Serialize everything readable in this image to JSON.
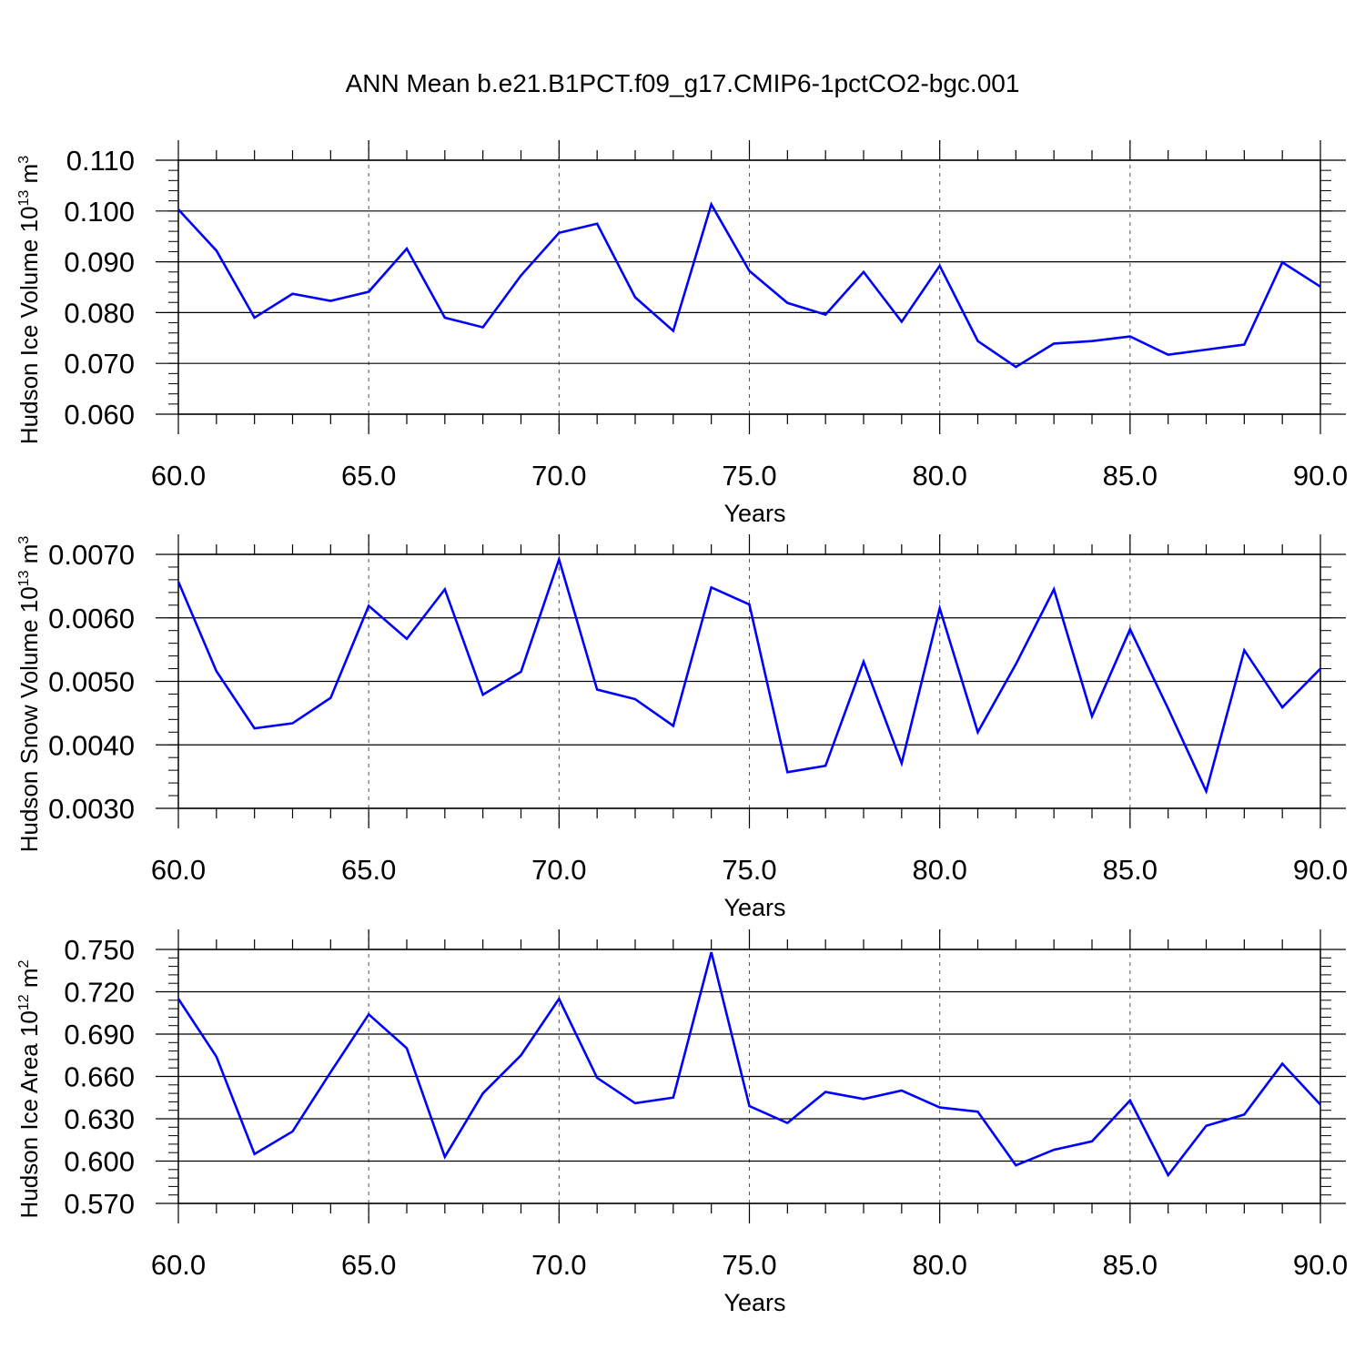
{
  "title": "ANN Mean b.e21.B1PCT.f09_g17.CMIP6-1pctCO2-bgc.001",
  "colors": {
    "line": "#0000ff",
    "axis": "#000000",
    "grid": "#555555"
  },
  "chart_data": [
    {
      "type": "line",
      "ylabel_main": "Hudson Ice Volume 10",
      "ylabel_exp": "13",
      "ylabel_unit": "m",
      "ylabel_unit_exp": "3",
      "xlabel": "Years",
      "xlim": [
        60,
        90
      ],
      "ylim": [
        0.06,
        0.11
      ],
      "xticks": [
        "60.0",
        "65.0",
        "70.0",
        "75.0",
        "80.0",
        "85.0",
        "90.0"
      ],
      "yticks": [
        "0.060",
        "0.070",
        "0.080",
        "0.090",
        "0.100",
        "0.110"
      ],
      "x": [
        60,
        61,
        62,
        63,
        64,
        65,
        66,
        67,
        68,
        69,
        70,
        71,
        72,
        73,
        74,
        75,
        76,
        77,
        78,
        79,
        80,
        81,
        82,
        83,
        84,
        85,
        86,
        87,
        88,
        89,
        90
      ],
      "values": [
        0.1003,
        0.0922,
        0.079,
        0.0837,
        0.0823,
        0.0841,
        0.0926,
        0.079,
        0.0771,
        0.0873,
        0.0957,
        0.0975,
        0.083,
        0.0764,
        0.1013,
        0.0882,
        0.0819,
        0.0796,
        0.088,
        0.0782,
        0.0892,
        0.0744,
        0.0693,
        0.0739,
        0.0744,
        0.0753,
        0.0717,
        0.0727,
        0.0737,
        0.0899,
        0.0851
      ]
    },
    {
      "type": "line",
      "ylabel_main": "Hudson Snow Volume 10",
      "ylabel_exp": "13",
      "ylabel_unit": "m",
      "ylabel_unit_exp": "3",
      "xlabel": "Years",
      "xlim": [
        60,
        90
      ],
      "ylim": [
        0.003,
        0.007
      ],
      "xticks": [
        "60.0",
        "65.0",
        "70.0",
        "75.0",
        "80.0",
        "85.0",
        "90.0"
      ],
      "yticks": [
        "0.0030",
        "0.0040",
        "0.0050",
        "0.0060",
        "0.0070"
      ],
      "x": [
        60,
        61,
        62,
        63,
        64,
        65,
        66,
        67,
        68,
        69,
        70,
        71,
        72,
        73,
        74,
        75,
        76,
        77,
        78,
        79,
        80,
        81,
        82,
        83,
        84,
        85,
        86,
        87,
        88,
        89,
        90
      ],
      "values": [
        0.00657,
        0.00516,
        0.00426,
        0.00434,
        0.00474,
        0.00619,
        0.00567,
        0.00645,
        0.00479,
        0.00515,
        0.00692,
        0.00487,
        0.00472,
        0.0043,
        0.00648,
        0.00621,
        0.00357,
        0.00367,
        0.00531,
        0.00371,
        0.00615,
        0.0042,
        0.00527,
        0.00645,
        0.00445,
        0.00582,
        0.00457,
        0.00327,
        0.00549,
        0.00459,
        0.0052
      ]
    },
    {
      "type": "line",
      "ylabel_main": "Hudson Ice Area 10",
      "ylabel_exp": "12",
      "ylabel_unit": "m",
      "ylabel_unit_exp": "2",
      "xlabel": "Years",
      "xlim": [
        60,
        90
      ],
      "ylim": [
        0.57,
        0.75
      ],
      "xticks": [
        "60.0",
        "65.0",
        "70.0",
        "75.0",
        "80.0",
        "85.0",
        "90.0"
      ],
      "yticks": [
        "0.570",
        "0.600",
        "0.630",
        "0.660",
        "0.690",
        "0.720",
        "0.750"
      ],
      "x": [
        60,
        61,
        62,
        63,
        64,
        65,
        66,
        67,
        68,
        69,
        70,
        71,
        72,
        73,
        74,
        75,
        76,
        77,
        78,
        79,
        80,
        81,
        82,
        83,
        84,
        85,
        86,
        87,
        88,
        89,
        90
      ],
      "values": [
        0.715,
        0.674,
        0.605,
        0.621,
        0.663,
        0.704,
        0.68,
        0.603,
        0.648,
        0.675,
        0.715,
        0.659,
        0.641,
        0.645,
        0.748,
        0.639,
        0.627,
        0.649,
        0.644,
        0.65,
        0.638,
        0.635,
        0.597,
        0.608,
        0.614,
        0.643,
        0.59,
        0.625,
        0.633,
        0.669,
        0.64
      ]
    }
  ]
}
